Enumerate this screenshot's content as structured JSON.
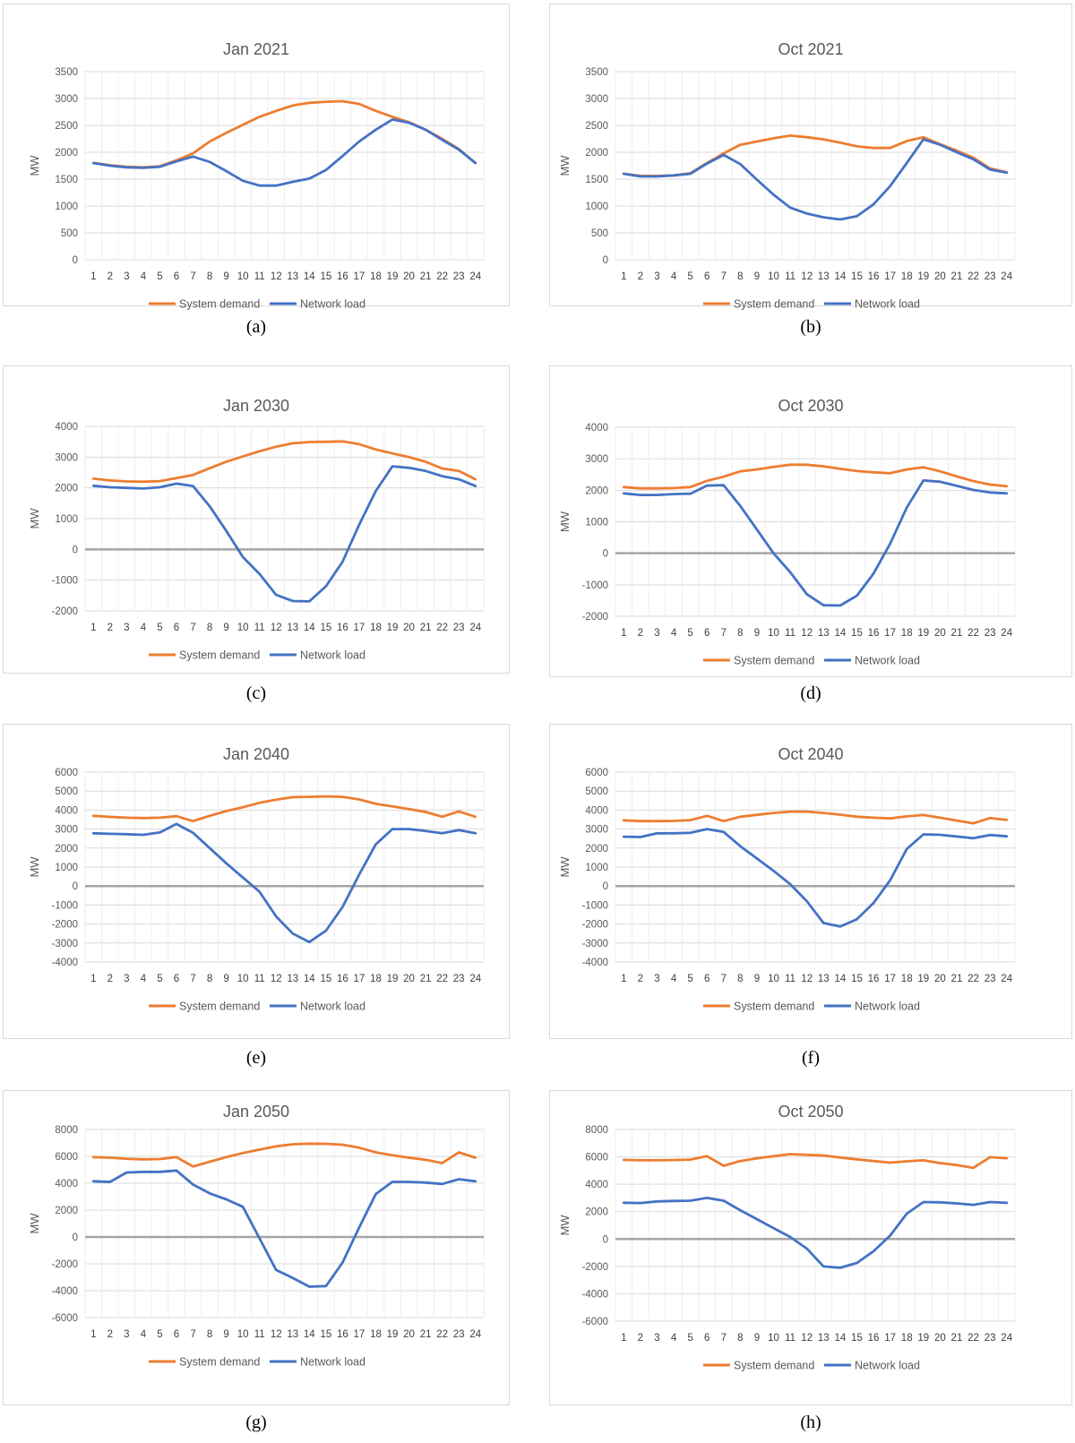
{
  "colors": {
    "system_demand": "#ED7D31",
    "network_load": "#4472C4",
    "zero_line": "#A5A5A5",
    "grid": "#D9D9D9",
    "text": "#595959"
  },
  "chart_data": [
    {
      "id": "a",
      "label": "(a)",
      "type": "line",
      "title": "Jan 2021",
      "xlabel": "",
      "ylabel": "MW",
      "ylim": [
        0,
        3500
      ],
      "yticks": [
        0,
        500,
        1000,
        1500,
        2000,
        2500,
        3000,
        3500
      ],
      "zero_line": false,
      "categories": [
        1,
        2,
        3,
        4,
        5,
        6,
        7,
        8,
        9,
        10,
        11,
        12,
        13,
        14,
        15,
        16,
        17,
        18,
        19,
        20,
        21,
        22,
        23,
        24
      ],
      "legend": [
        "System demand",
        "Network load"
      ],
      "series": [
        {
          "name": "System demand",
          "values": [
            1800,
            1760,
            1730,
            1720,
            1740,
            1850,
            1980,
            2200,
            2360,
            2510,
            2660,
            2770,
            2870,
            2920,
            2940,
            2950,
            2900,
            2770,
            2660,
            2560,
            2420,
            2250,
            2060,
            1800
          ]
        },
        {
          "name": "Network load",
          "values": [
            1800,
            1750,
            1720,
            1710,
            1730,
            1830,
            1920,
            1820,
            1650,
            1470,
            1380,
            1380,
            1450,
            1510,
            1670,
            1930,
            2200,
            2420,
            2610,
            2550,
            2420,
            2230,
            2050,
            1800
          ]
        }
      ]
    },
    {
      "id": "b",
      "label": "(b)",
      "type": "line",
      "title": "Oct 2021",
      "xlabel": "",
      "ylabel": "MW",
      "ylim": [
        0,
        3500
      ],
      "yticks": [
        0,
        500,
        1000,
        1500,
        2000,
        2500,
        3000,
        3500
      ],
      "zero_line": false,
      "categories": [
        1,
        2,
        3,
        4,
        5,
        6,
        7,
        8,
        9,
        10,
        11,
        12,
        13,
        14,
        15,
        16,
        17,
        18,
        19,
        20,
        21,
        22,
        23,
        24
      ],
      "legend": [
        "System demand",
        "Network load"
      ],
      "series": [
        {
          "name": "System demand",
          "values": [
            1600,
            1560,
            1560,
            1570,
            1610,
            1800,
            1980,
            2140,
            2200,
            2260,
            2310,
            2280,
            2240,
            2180,
            2110,
            2080,
            2080,
            2210,
            2280,
            2150,
            2030,
            1900,
            1700,
            1630
          ]
        },
        {
          "name": "Network load",
          "values": [
            1600,
            1550,
            1550,
            1570,
            1600,
            1790,
            1950,
            1780,
            1490,
            1210,
            970,
            860,
            790,
            750,
            810,
            1030,
            1370,
            1800,
            2240,
            2140,
            2000,
            1870,
            1680,
            1620
          ]
        }
      ]
    },
    {
      "id": "c",
      "label": "(c)",
      "type": "line",
      "title": "Jan 2030",
      "xlabel": "",
      "ylabel": "MW",
      "ylim": [
        -2000,
        4000
      ],
      "yticks": [
        -2000,
        -1000,
        0,
        1000,
        2000,
        3000,
        4000
      ],
      "zero_line": true,
      "categories": [
        1,
        2,
        3,
        4,
        5,
        6,
        7,
        8,
        9,
        10,
        11,
        12,
        13,
        14,
        15,
        16,
        17,
        18,
        19,
        20,
        21,
        22,
        23,
        24
      ],
      "legend": [
        "System demand",
        "Network load"
      ],
      "series": [
        {
          "name": "System demand",
          "values": [
            2300,
            2240,
            2210,
            2200,
            2220,
            2320,
            2420,
            2640,
            2850,
            3020,
            3190,
            3340,
            3450,
            3490,
            3500,
            3510,
            3420,
            3250,
            3120,
            3000,
            2850,
            2630,
            2550,
            2280
          ]
        },
        {
          "name": "Network load",
          "values": [
            2070,
            2020,
            2000,
            1980,
            2020,
            2140,
            2060,
            1400,
            600,
            -250,
            -800,
            -1480,
            -1680,
            -1690,
            -1200,
            -400,
            800,
            1900,
            2700,
            2650,
            2550,
            2380,
            2280,
            2060
          ]
        }
      ]
    },
    {
      "id": "d",
      "label": "(d)",
      "type": "line",
      "title": "Oct 2030",
      "xlabel": "",
      "ylabel": "MW",
      "ylim": [
        -2000,
        4000
      ],
      "yticks": [
        -2000,
        -1000,
        0,
        1000,
        2000,
        3000,
        4000
      ],
      "zero_line": true,
      "categories": [
        1,
        2,
        3,
        4,
        5,
        6,
        7,
        8,
        9,
        10,
        11,
        12,
        13,
        14,
        15,
        16,
        17,
        18,
        19,
        20,
        21,
        22,
        23,
        24
      ],
      "legend": [
        "System demand",
        "Network load"
      ],
      "series": [
        {
          "name": "System demand",
          "values": [
            2100,
            2060,
            2060,
            2070,
            2100,
            2300,
            2430,
            2600,
            2660,
            2740,
            2810,
            2810,
            2760,
            2680,
            2610,
            2570,
            2540,
            2660,
            2730,
            2600,
            2440,
            2290,
            2180,
            2130
          ]
        },
        {
          "name": "Network load",
          "values": [
            1900,
            1850,
            1850,
            1880,
            1890,
            2150,
            2160,
            1500,
            750,
            0,
            -600,
            -1300,
            -1650,
            -1660,
            -1350,
            -650,
            300,
            1450,
            2310,
            2270,
            2140,
            2010,
            1930,
            1900
          ]
        }
      ]
    },
    {
      "id": "e",
      "label": "(e)",
      "type": "line",
      "title": "Jan 2040",
      "xlabel": "",
      "ylabel": "MW",
      "ylim": [
        -4000,
        6000
      ],
      "yticks": [
        -4000,
        -3000,
        -2000,
        -1000,
        0,
        1000,
        2000,
        3000,
        4000,
        5000,
        6000
      ],
      "zero_line": true,
      "categories": [
        1,
        2,
        3,
        4,
        5,
        6,
        7,
        8,
        9,
        10,
        11,
        12,
        13,
        14,
        15,
        16,
        17,
        18,
        19,
        20,
        21,
        22,
        23,
        24
      ],
      "legend": [
        "System demand",
        "Network load"
      ],
      "series": [
        {
          "name": "System demand",
          "values": [
            3700,
            3640,
            3600,
            3580,
            3600,
            3680,
            3420,
            3700,
            3950,
            4150,
            4380,
            4550,
            4680,
            4700,
            4720,
            4700,
            4560,
            4330,
            4200,
            4050,
            3900,
            3650,
            3930,
            3650
          ]
        },
        {
          "name": "Network load",
          "values": [
            2780,
            2750,
            2730,
            2700,
            2820,
            3270,
            2800,
            2000,
            1200,
            450,
            -300,
            -1600,
            -2500,
            -2950,
            -2350,
            -1100,
            600,
            2200,
            3000,
            3000,
            2900,
            2780,
            2950,
            2780
          ]
        }
      ]
    },
    {
      "id": "f",
      "label": "(f)",
      "type": "line",
      "title": "Oct 2040",
      "xlabel": "",
      "ylabel": "MW",
      "ylim": [
        -4000,
        6000
      ],
      "yticks": [
        -4000,
        -3000,
        -2000,
        -1000,
        0,
        1000,
        2000,
        3000,
        4000,
        5000,
        6000
      ],
      "zero_line": true,
      "categories": [
        1,
        2,
        3,
        4,
        5,
        6,
        7,
        8,
        9,
        10,
        11,
        12,
        13,
        14,
        15,
        16,
        17,
        18,
        19,
        20,
        21,
        22,
        23,
        24
      ],
      "legend": [
        "System demand",
        "Network load"
      ],
      "series": [
        {
          "name": "System demand",
          "values": [
            3460,
            3420,
            3420,
            3430,
            3470,
            3700,
            3420,
            3650,
            3750,
            3850,
            3920,
            3920,
            3850,
            3760,
            3650,
            3600,
            3560,
            3670,
            3740,
            3600,
            3450,
            3300,
            3580,
            3480
          ]
        },
        {
          "name": "Network load",
          "values": [
            2600,
            2580,
            2780,
            2780,
            2800,
            3000,
            2850,
            2100,
            1450,
            800,
            100,
            -800,
            -1950,
            -2130,
            -1750,
            -900,
            300,
            1950,
            2720,
            2700,
            2610,
            2520,
            2690,
            2620
          ]
        }
      ]
    },
    {
      "id": "g",
      "label": "(g)",
      "type": "line",
      "title": "Jan 2050",
      "xlabel": "",
      "ylabel": "MW",
      "ylim": [
        -6000,
        8000
      ],
      "yticks": [
        -6000,
        -4000,
        -2000,
        0,
        2000,
        4000,
        6000,
        8000
      ],
      "zero_line": true,
      "categories": [
        1,
        2,
        3,
        4,
        5,
        6,
        7,
        8,
        9,
        10,
        11,
        12,
        13,
        14,
        15,
        16,
        17,
        18,
        19,
        20,
        21,
        22,
        23,
        24
      ],
      "legend": [
        "System demand",
        "Network load"
      ],
      "series": [
        {
          "name": "System demand",
          "values": [
            5950,
            5900,
            5820,
            5780,
            5800,
            5950,
            5250,
            5600,
            5950,
            6250,
            6500,
            6750,
            6900,
            6950,
            6930,
            6870,
            6650,
            6300,
            6080,
            5900,
            5750,
            5500,
            6300,
            5900
          ]
        },
        {
          "name": "Network load",
          "values": [
            4150,
            4100,
            4800,
            4850,
            4850,
            4950,
            3900,
            3250,
            2800,
            2250,
            -100,
            -2450,
            -3050,
            -3700,
            -3650,
            -1900,
            700,
            3200,
            4100,
            4100,
            4050,
            3950,
            4300,
            4150
          ]
        }
      ]
    },
    {
      "id": "h",
      "label": "(h)",
      "type": "line",
      "title": "Oct 2050",
      "xlabel": "",
      "ylabel": "MW",
      "ylim": [
        -6000,
        8000
      ],
      "yticks": [
        -6000,
        -4000,
        -2000,
        0,
        2000,
        4000,
        6000,
        8000
      ],
      "zero_line": true,
      "categories": [
        1,
        2,
        3,
        4,
        5,
        6,
        7,
        8,
        9,
        10,
        11,
        12,
        13,
        14,
        15,
        16,
        17,
        18,
        19,
        20,
        21,
        22,
        23,
        24
      ],
      "legend": [
        "System demand",
        "Network load"
      ],
      "series": [
        {
          "name": "System demand",
          "values": [
            5780,
            5750,
            5750,
            5770,
            5800,
            6050,
            5350,
            5700,
            5900,
            6050,
            6200,
            6150,
            6100,
            5950,
            5820,
            5700,
            5580,
            5680,
            5750,
            5550,
            5400,
            5200,
            5980,
            5900
          ]
        },
        {
          "name": "Network load",
          "values": [
            2650,
            2630,
            2750,
            2780,
            2800,
            3000,
            2800,
            2100,
            1450,
            800,
            150,
            -700,
            -2000,
            -2100,
            -1750,
            -900,
            250,
            1850,
            2700,
            2680,
            2600,
            2500,
            2700,
            2640
          ]
        }
      ]
    }
  ]
}
